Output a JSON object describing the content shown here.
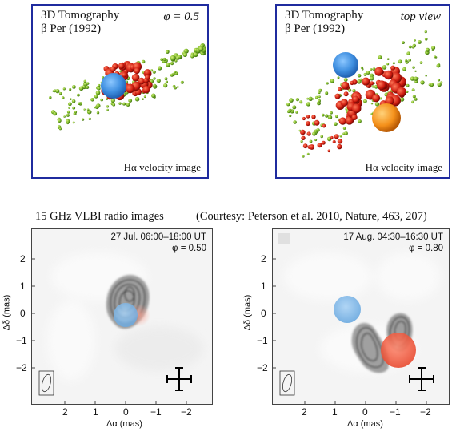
{
  "top_left": {
    "title_line1": "3D Tomography",
    "title_line2": "β Per (1992)",
    "phase_label": "φ = 0.5",
    "bottom_label": "Hα velocity image"
  },
  "top_right": {
    "title_line1": "3D Tomography",
    "title_line2": "β Per (1992)",
    "view_label": "top view",
    "bottom_label": "Hα velocity image"
  },
  "caption_left": "15 GHz VLBI radio images",
  "caption_right": "(Courtesy: Peterson et al. 2010, Nature, 463, 207)",
  "radio_left": {
    "date": "27 Jul. 06:00–18:00 UT",
    "phase": "φ = 0.50"
  },
  "radio_right": {
    "date": "17 Aug. 04:30–16:30 UT",
    "phase": "φ = 0.80"
  },
  "axes": {
    "ylabel": "Δδ (mas)",
    "xlabel": "Δα (mas)",
    "yticks": [
      "2",
      "1",
      "0",
      "−1",
      "−2"
    ],
    "xticks": [
      "2",
      "1",
      "0",
      "−1",
      "−2"
    ]
  },
  "colors": {
    "frame": "#1f2b9e",
    "blue_star": "#3f8fe0",
    "red_star": "#e23b1f",
    "orange_star": "#f4901a",
    "green_dots": "#7fbf2a",
    "red_dots": "#cc1a0e"
  }
}
